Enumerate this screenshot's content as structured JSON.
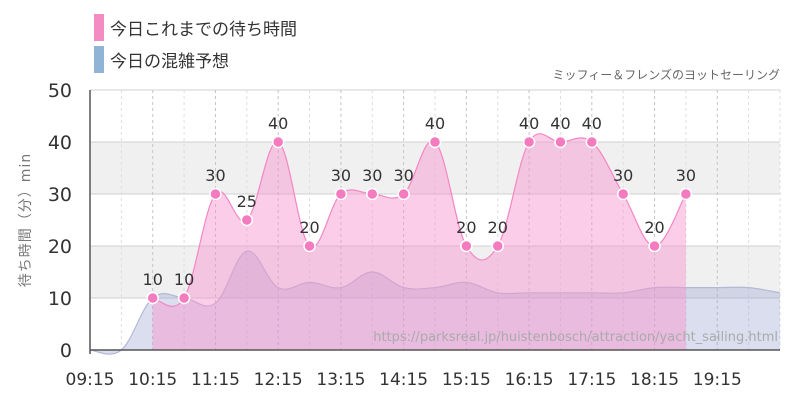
{
  "chart_data": {
    "type": "area",
    "subtitle": "ミッフィー＆フレンズのヨットセーリング",
    "ylabel": "待ち時間（分）min",
    "source_url": "https://parksreal.jp/huistenbosch/attraction/yacht_sailing.html",
    "ylim": [
      0,
      50
    ],
    "yticks": [
      0,
      10,
      20,
      30,
      40,
      50
    ],
    "x_range": [
      "09:15",
      "20:15"
    ],
    "x_ticks": [
      "09:15",
      "10:15",
      "11:15",
      "12:15",
      "13:15",
      "14:15",
      "15:15",
      "16:15",
      "17:15",
      "18:15",
      "19:15"
    ],
    "grid": true,
    "legend_position": "top-left",
    "series": [
      {
        "name": "今日これまでの待ち時間",
        "color": "#f48cc4",
        "data_labels": true,
        "points": [
          {
            "x": "10:15",
            "y": 10
          },
          {
            "x": "10:45",
            "y": 10
          },
          {
            "x": "11:15",
            "y": 30
          },
          {
            "x": "11:45",
            "y": 25
          },
          {
            "x": "12:15",
            "y": 40
          },
          {
            "x": "12:45",
            "y": 20
          },
          {
            "x": "13:15",
            "y": 30
          },
          {
            "x": "13:45",
            "y": 30
          },
          {
            "x": "14:15",
            "y": 30
          },
          {
            "x": "14:45",
            "y": 40
          },
          {
            "x": "15:15",
            "y": 20
          },
          {
            "x": "15:45",
            "y": 20
          },
          {
            "x": "16:15",
            "y": 40
          },
          {
            "x": "16:45",
            "y": 40
          },
          {
            "x": "17:15",
            "y": 40
          },
          {
            "x": "17:45",
            "y": 30
          },
          {
            "x": "18:15",
            "y": 20
          },
          {
            "x": "18:45",
            "y": 30
          }
        ]
      },
      {
        "name": "今日の混雑予想",
        "color": "#8fb4d6",
        "data_labels": false,
        "points": [
          {
            "x": "09:15",
            "y": 0
          },
          {
            "x": "09:45",
            "y": 0
          },
          {
            "x": "10:15",
            "y": 10
          },
          {
            "x": "10:45",
            "y": 10
          },
          {
            "x": "11:15",
            "y": 9
          },
          {
            "x": "11:45",
            "y": 19
          },
          {
            "x": "12:15",
            "y": 12
          },
          {
            "x": "12:45",
            "y": 13
          },
          {
            "x": "13:15",
            "y": 12
          },
          {
            "x": "13:45",
            "y": 15
          },
          {
            "x": "14:15",
            "y": 12
          },
          {
            "x": "14:45",
            "y": 12
          },
          {
            "x": "15:15",
            "y": 13
          },
          {
            "x": "15:45",
            "y": 11
          },
          {
            "x": "16:15",
            "y": 11
          },
          {
            "x": "16:45",
            "y": 11
          },
          {
            "x": "17:15",
            "y": 11
          },
          {
            "x": "17:45",
            "y": 11
          },
          {
            "x": "18:15",
            "y": 12
          },
          {
            "x": "18:45",
            "y": 12
          },
          {
            "x": "19:15",
            "y": 12
          },
          {
            "x": "19:45",
            "y": 12
          },
          {
            "x": "20:15",
            "y": 11
          }
        ]
      }
    ]
  }
}
